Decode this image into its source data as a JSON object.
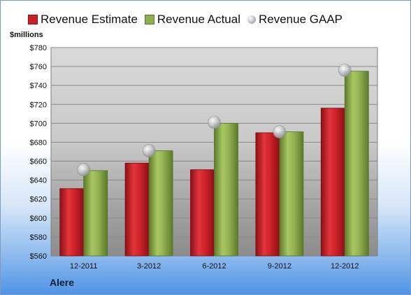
{
  "chart_data": {
    "type": "bar",
    "categories": [
      "12-2011",
      "3-2012",
      "6-2012",
      "9-2012",
      "12-2012"
    ],
    "series": [
      {
        "name": "Revenue Estimate",
        "kind": "bar",
        "color": "#cc1f26",
        "values": [
          631,
          658,
          651,
          690,
          716
        ]
      },
      {
        "name": "Revenue Actual",
        "kind": "bar",
        "color": "#8fae4c",
        "values": [
          650,
          671,
          700,
          691,
          755
        ]
      },
      {
        "name": "Revenue GAAP",
        "kind": "marker",
        "color": "#b9bcc2",
        "values": [
          651,
          671,
          701,
          691,
          756
        ]
      }
    ],
    "ylabel": "$millions",
    "ylim": [
      560,
      780
    ],
    "yticks": [
      560,
      580,
      600,
      620,
      640,
      660,
      680,
      700,
      720,
      740,
      760,
      780
    ],
    "ytick_labels": [
      "$560",
      "$580",
      "$600",
      "$620",
      "$640",
      "$660",
      "$680",
      "$700",
      "$720",
      "$740",
      "$760",
      "$780"
    ],
    "grid": true,
    "legend_position": "top"
  },
  "footer": {
    "company": "Alere"
  }
}
